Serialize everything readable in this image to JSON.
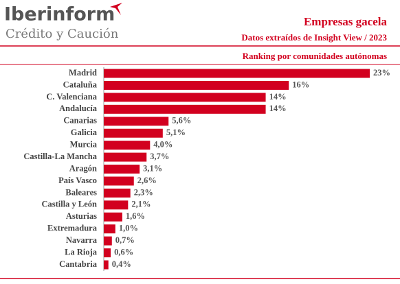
{
  "brand": {
    "name": "Iberinform",
    "tagline": "Crédito y Caución"
  },
  "chart_data": {
    "type": "hbar",
    "title": "Empresas gacela",
    "subtitle": "Datos extraídos de Insight View / 2023",
    "caption": "Ranking por comunidades autónomas",
    "color": "#d2001f",
    "categories": [
      "Madrid",
      "Cataluña",
      "C. Valenciana",
      "Andalucía",
      "Canarias",
      "Galicia",
      "Murcia",
      "Castilla-La Mancha",
      "Aragón",
      "País Vasco",
      "Baleares",
      "Castilla y León",
      "Asturias",
      "Extremadura",
      "Navarra",
      "La Rioja",
      "Cantabria"
    ],
    "values": [
      23,
      16,
      14,
      14,
      5.6,
      5.1,
      4.0,
      3.7,
      3.1,
      2.6,
      2.3,
      2.1,
      1.6,
      1.0,
      0.7,
      0.6,
      0.4
    ],
    "value_labels": [
      "23%",
      "16%",
      "14%",
      "14%",
      "5,6%",
      "5,1%",
      "4,0%",
      "3,7%",
      "3,1%",
      "2,6%",
      "2,3%",
      "2,1%",
      "1,6%",
      "1,0%",
      "0,7%",
      "0,6%",
      "0,4%"
    ]
  }
}
